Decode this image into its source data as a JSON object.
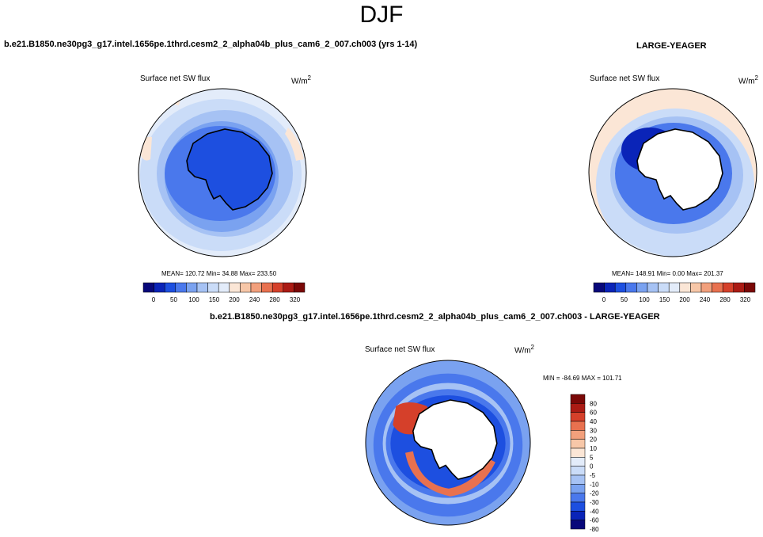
{
  "figure": {
    "season": "DJF",
    "left_case": "b.e21.B1850.ne30pg3_g17.intel.1656pe.1thrd.cesm2_2_alpha04b_plus_cam6_2_007.ch003 (yrs 1-14)",
    "right_case": "LARGE-YEAGER",
    "diff_case": "b.e21.B1850.ne30pg3_g17.intel.1656pe.1thrd.cesm2_2_alpha04b_plus_cam6_2_007.ch003 - LARGE-YEAGER"
  },
  "colors": {
    "land": "#ffffff",
    "coast": "#000000",
    "abs_scale": [
      "#08087a",
      "#0a24b8",
      "#1d4fe0",
      "#4a78ec",
      "#7aa2f0",
      "#a6c2f4",
      "#cadcf8",
      "#e3ecfa",
      "#fbe6d6",
      "#f7c7a8",
      "#f2a07c",
      "#e8714f",
      "#d5402a",
      "#ab1b14",
      "#7a0807"
    ],
    "diff_scale": [
      "#08087a",
      "#0a24b8",
      "#1d4fe0",
      "#4a78ec",
      "#7aa2f0",
      "#a6c2f4",
      "#cadcf8",
      "#e3ecfa",
      "#fbe6d6",
      "#f7c7a8",
      "#f2a07c",
      "#e8714f",
      "#d5402a",
      "#ab1b14",
      "#7a0807"
    ]
  },
  "chart_data": [
    {
      "type": "heatmap",
      "projection": "polar-stereographic-south",
      "title": "Surface net SW flux",
      "units_base": "W/m",
      "units_exp": "2",
      "stats": "MEAN= 120.72  Min=  34.88  Max= 233.50",
      "mean": 120.72,
      "min": 34.88,
      "max": 233.5,
      "colorbar_labels": [
        "0",
        "50",
        "100",
        "150",
        "200",
        "240",
        "280",
        "320"
      ],
      "colorbar_orientation": "horizontal"
    },
    {
      "type": "heatmap",
      "projection": "polar-stereographic-south",
      "title": "Surface net SW flux",
      "units_base": "W/m",
      "units_exp": "2",
      "stats": "MEAN= 148.91  Min=   0.00  Max= 201.37",
      "mean": 148.91,
      "min": 0.0,
      "max": 201.37,
      "colorbar_labels": [
        "0",
        "50",
        "100",
        "150",
        "200",
        "240",
        "280",
        "320"
      ],
      "colorbar_orientation": "horizontal"
    },
    {
      "type": "heatmap",
      "projection": "polar-stereographic-south",
      "title": "Surface net SW flux",
      "units_base": "W/m",
      "units_exp": "2",
      "stats": "MIN = -84.69 MAX = 101.71",
      "min": -84.69,
      "max": 101.71,
      "colorbar_labels": [
        "80",
        "60",
        "40",
        "30",
        "20",
        "10",
        "5",
        "0",
        "-5",
        "-10",
        "-20",
        "-30",
        "-40",
        "-60",
        "-80"
      ],
      "colorbar_orientation": "vertical"
    }
  ]
}
